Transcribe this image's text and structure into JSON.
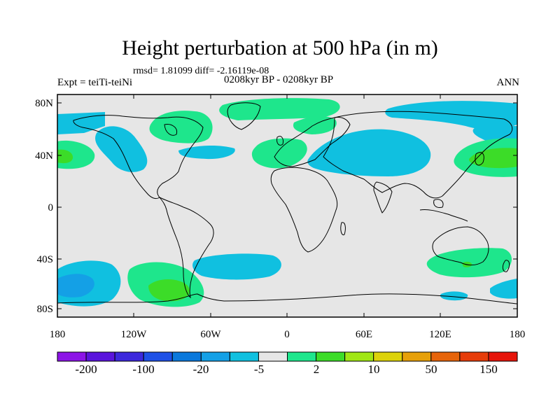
{
  "title": "Height perturbation at 500 hPa (in m)",
  "stats": "rmsd= 1.81099 diff= -2.16119e-08",
  "experiment": "Expt = teiTi-teiNi",
  "period": "0208kyr BP - 0208kyr BP",
  "season": "ANN",
  "map": {
    "projection": "cylindrical equidistant",
    "lon_range": [
      -180,
      180
    ],
    "lat_range": [
      -90,
      90
    ],
    "y_ticks": [
      "80N",
      "40N",
      "0",
      "40S",
      "80S"
    ],
    "x_ticks": [
      "180",
      "120W",
      "60W",
      "0",
      "60E",
      "120E",
      "180"
    ],
    "background_color": "#e6e6e6",
    "coastline_color": "#000000"
  },
  "colorbar": {
    "colors": [
      "#8c14e6",
      "#5a14dc",
      "#3c28dc",
      "#1e50e6",
      "#0a78dc",
      "#14a0e6",
      "#10c0e0",
      "#e6e6e6",
      "#1ee68c",
      "#3cdc28",
      "#a0e614",
      "#dcd20a",
      "#e6a00a",
      "#e6640a",
      "#e63c0a",
      "#e6140a"
    ],
    "labels": [
      "-200",
      "-100",
      "-20",
      "-5",
      "2",
      "10",
      "50",
      "150"
    ]
  }
}
